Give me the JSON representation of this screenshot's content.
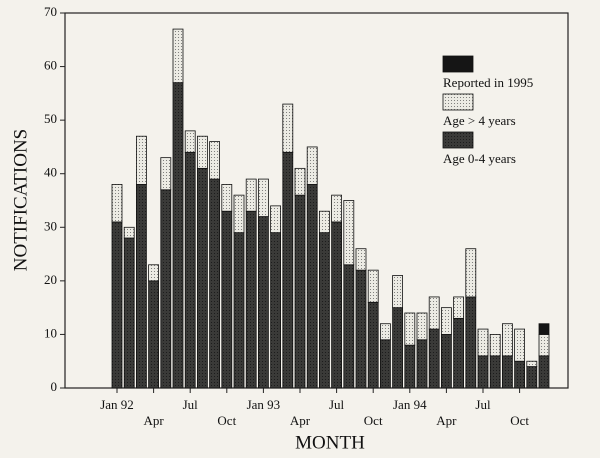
{
  "chart_data": {
    "type": "stacked_bar",
    "x_label": "MONTH",
    "y_label": "NOTIFICATIONS",
    "categories": [
      "Jan 92",
      null,
      null,
      "Apr",
      null,
      null,
      "Jul",
      null,
      null,
      "Oct",
      null,
      null,
      "Jan 93",
      null,
      null,
      "Apr",
      null,
      null,
      "Jul",
      null,
      null,
      "Oct",
      null,
      null,
      "Jan 94",
      null,
      null,
      "Apr",
      null,
      null,
      "Jul",
      null,
      null,
      "Oct",
      null,
      null
    ],
    "series": [
      {
        "name": "Age 0-4 years",
        "color": "#3a3a38",
        "values": [
          31,
          28,
          38,
          20,
          37,
          57,
          44,
          41,
          39,
          33,
          29,
          33,
          32,
          29,
          44,
          36,
          38,
          29,
          31,
          23,
          22,
          16,
          9,
          15,
          8,
          9,
          11,
          10,
          13,
          17,
          6,
          6,
          6,
          5,
          4,
          6
        ]
      },
      {
        "name": "Age > 4 years",
        "color": "#ecebe4",
        "values": [
          7,
          2,
          9,
          3,
          6,
          10,
          4,
          6,
          7,
          5,
          7,
          6,
          7,
          5,
          9,
          5,
          7,
          4,
          5,
          12,
          4,
          6,
          3,
          6,
          6,
          5,
          6,
          5,
          4,
          9,
          5,
          4,
          6,
          6,
          1,
          4
        ]
      },
      {
        "name": "Reported in 1995",
        "color": "#151515",
        "values": [
          0,
          0,
          0,
          0,
          0,
          0,
          0,
          0,
          0,
          0,
          0,
          0,
          0,
          0,
          0,
          0,
          0,
          0,
          0,
          0,
          0,
          0,
          0,
          0,
          0,
          0,
          0,
          0,
          0,
          0,
          0,
          0,
          0,
          0,
          0,
          2
        ]
      }
    ],
    "ylim": [
      0,
      70
    ],
    "yticks": [
      0,
      10,
      20,
      30,
      40,
      50,
      60,
      70
    ]
  }
}
